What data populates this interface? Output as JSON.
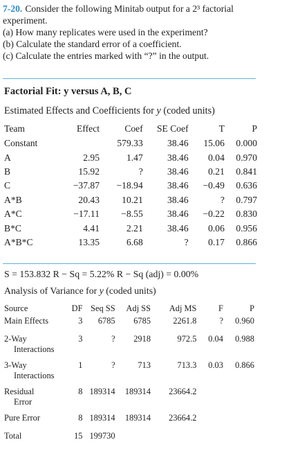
{
  "problem": {
    "number": "7-20.",
    "intro": "Consider the following Minitab output for a 2³ factorial experiment.",
    "parts": [
      "(a) How many replicates were used in the experiment?",
      "(b) Calculate the standard error of a coefficient.",
      "(c) Calculate the entries marked with “?” in the output."
    ]
  },
  "output": {
    "title": "Factorial Fit: y versus A, B, C",
    "coef_caption_pre": "Estimated Effects and Coefficients for ",
    "coef_caption_var": "y",
    "coef_caption_post": " (coded units)",
    "coef_headers": [
      "Team",
      "Effect",
      "Coef",
      "SE Coef",
      "T",
      "P"
    ],
    "coef_rows": [
      [
        "Constant",
        "",
        "579.33",
        "38.46",
        "15.06",
        "0.000"
      ],
      [
        "A",
        "2.95",
        "1.47",
        "38.46",
        "0.04",
        "0.970"
      ],
      [
        "B",
        "15.92",
        "?",
        "38.46",
        "0.21",
        "0.841"
      ],
      [
        "C",
        "−37.87",
        "−18.94",
        "38.46",
        "−0.49",
        "0.636"
      ],
      [
        "A*B",
        "20.43",
        "10.21",
        "38.46",
        "?",
        "0.797"
      ],
      [
        "A*C",
        "−17.11",
        "−8.55",
        "38.46",
        "−0.22",
        "0.830"
      ],
      [
        "B*C",
        "4.41",
        "2.21",
        "38.46",
        "0.06",
        "0.956"
      ],
      [
        "A*B*C",
        "13.35",
        "6.68",
        "?",
        "0.17",
        "0.866"
      ]
    ],
    "stats_line": "S = 153.832   R − Sq = 5.22%   R − Sq (adj) = 0.00%",
    "anova_caption_pre": "Analysis of Variance for ",
    "anova_caption_var": "y",
    "anova_caption_post": " (coded units)",
    "anova_headers": [
      "Source",
      "DF",
      "Seq SS",
      "Adj SS",
      "Adj MS",
      "F",
      "P"
    ],
    "anova_rows": [
      {
        "source": "Main Effects",
        "source2": "",
        "df": "3",
        "seq": "6785",
        "adj": "6785",
        "ms": "2261.8",
        "f": "?",
        "p": "0.960"
      },
      {
        "source": "2-Way",
        "source2": "Interactions",
        "df": "3",
        "seq": "?",
        "adj": "2918",
        "ms": "972.5",
        "f": "0.04",
        "p": "0.988"
      },
      {
        "source": "3-Way",
        "source2": "Interactions",
        "df": "1",
        "seq": "?",
        "adj": "713",
        "ms": "713.3",
        "f": "0.03",
        "p": "0.866"
      },
      {
        "source": "Residual",
        "source2": "Error",
        "df": "8",
        "seq": "189314",
        "adj": "189314",
        "ms": "23664.2",
        "f": "",
        "p": ""
      },
      {
        "source": "Pure Error",
        "source2": "",
        "df": "8",
        "seq": "189314",
        "adj": "189314",
        "ms": "23664.2",
        "f": "",
        "p": ""
      },
      {
        "source": "Total",
        "source2": "",
        "df": "15",
        "seq": "199730",
        "adj": "",
        "ms": "",
        "f": "",
        "p": ""
      }
    ]
  },
  "colors": {
    "accent": "#2e8bc0",
    "rule": "#5fb0d6",
    "text": "#222222"
  }
}
